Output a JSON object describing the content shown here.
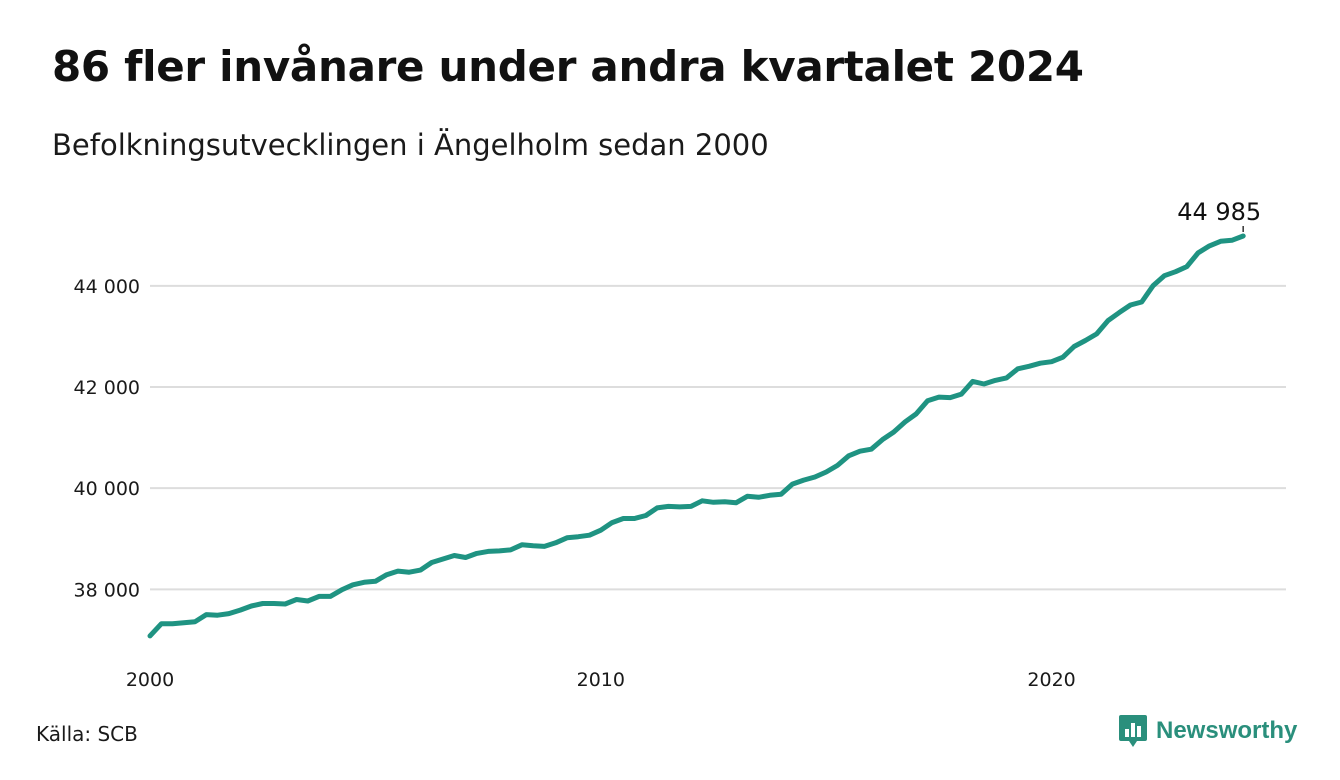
{
  "title": "86 fler invånare under andra kvartalet 2024",
  "subtitle": "Befolkningsutvecklingen i Ängelholm sedan 2000",
  "source": "Källa: SCB",
  "brand": {
    "name": "Newsworthy",
    "icon": "bar-chart-speech-bubble-icon",
    "color": "#2a8f7c"
  },
  "colors": {
    "line": "#1f9382",
    "grid": "#dddddd"
  },
  "chart_data": {
    "type": "line",
    "title": "86 fler invånare under andra kvartalet 2024",
    "subtitle": "Befolkningsutvecklingen i Ängelholm sedan 2000",
    "xlabel": "",
    "ylabel": "",
    "x_ticks": [
      "2000",
      "2010",
      "2020"
    ],
    "x_tick_values": [
      2000,
      2010,
      2020
    ],
    "y_ticks": [
      38000,
      40000,
      42000,
      44000
    ],
    "y_tick_labels": [
      "38 000",
      "40 000",
      "42 000",
      "44 000"
    ],
    "xlim": [
      2000,
      2025.2
    ],
    "ylim": [
      36900,
      45400
    ],
    "grid": "horizontal",
    "end_label": "44 985",
    "series": [
      {
        "x": [
          2000.0,
          2000.25,
          2000.5,
          2000.75,
          2001.0,
          2001.25,
          2001.5,
          2001.75,
          2002.0,
          2002.25,
          2002.5,
          2002.75,
          2003.0,
          2003.25,
          2003.5,
          2003.75,
          2004.0,
          2004.25,
          2004.5,
          2004.75,
          2005.0,
          2005.25,
          2005.5,
          2005.75,
          2006.0,
          2006.25,
          2006.5,
          2006.75,
          2007.0,
          2007.25,
          2007.5,
          2007.75,
          2008.0,
          2008.25,
          2008.5,
          2008.75,
          2009.0,
          2009.25,
          2009.5,
          2009.75,
          2010.0,
          2010.25,
          2010.5,
          2010.75,
          2011.0,
          2011.25,
          2011.5,
          2011.75,
          2012.0,
          2012.25,
          2012.5,
          2012.75,
          2013.0,
          2013.25,
          2013.5,
          2013.75,
          2014.0,
          2014.25,
          2014.5,
          2014.75,
          2015.0,
          2015.25,
          2015.5,
          2015.75,
          2016.0,
          2016.25,
          2016.5,
          2016.75,
          2017.0,
          2017.25,
          2017.5,
          2017.75,
          2018.0,
          2018.25,
          2018.5,
          2018.75,
          2019.0,
          2019.25,
          2019.5,
          2019.75,
          2020.0,
          2020.25,
          2020.5,
          2020.75,
          2021.0,
          2021.25,
          2021.5,
          2021.75,
          2022.0,
          2022.25,
          2022.5,
          2022.75,
          2023.0,
          2023.25,
          2023.5,
          2023.75,
          2024.0,
          2024.25
        ],
        "values": [
          37080,
          37320,
          37320,
          37340,
          37360,
          37500,
          37490,
          37520,
          37590,
          37670,
          37720,
          37720,
          37710,
          37800,
          37770,
          37860,
          37860,
          37990,
          38090,
          38140,
          38160,
          38290,
          38360,
          38340,
          38380,
          38530,
          38600,
          38670,
          38630,
          38710,
          38750,
          38760,
          38780,
          38880,
          38860,
          38850,
          38920,
          39020,
          39040,
          39070,
          39170,
          39320,
          39400,
          39400,
          39460,
          39610,
          39640,
          39630,
          39640,
          39750,
          39720,
          39730,
          39710,
          39840,
          39820,
          39860,
          39880,
          40080,
          40160,
          40220,
          40320,
          40450,
          40640,
          40730,
          40770,
          40960,
          41110,
          41310,
          41470,
          41730,
          41800,
          41790,
          41860,
          42110,
          42060,
          42130,
          42180,
          42360,
          42410,
          42470,
          42500,
          42590,
          42800,
          42920,
          43050,
          43310,
          43470,
          43620,
          43680,
          44000,
          44200,
          44280,
          44380,
          44650,
          44790,
          44880,
          44900,
          44985
        ]
      }
    ]
  }
}
